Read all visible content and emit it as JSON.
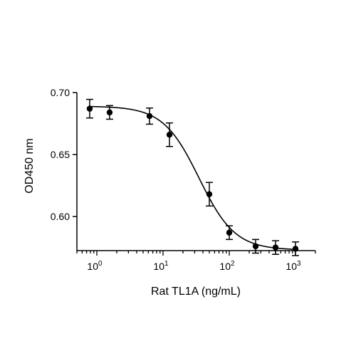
{
  "chart_data": {
    "type": "scatter",
    "title": "",
    "xlabel": "Rat TL1A (ng/mL)",
    "ylabel": "OD450 nm",
    "x_scale": "log",
    "xlim": [
      0.5,
      2000
    ],
    "ylim": [
      0.5725,
      0.7
    ],
    "x_ticks": [
      {
        "value": 1,
        "base": "10",
        "exp": "0"
      },
      {
        "value": 10,
        "base": "10",
        "exp": "1"
      },
      {
        "value": 100,
        "base": "10",
        "exp": "2"
      },
      {
        "value": 1000,
        "base": "10",
        "exp": "3"
      }
    ],
    "y_ticks": [
      {
        "value": 0.6,
        "label": "0.60"
      },
      {
        "value": 0.65,
        "label": "0.65"
      },
      {
        "value": 0.7,
        "label": "0.70"
      }
    ],
    "grid": false,
    "legend": "none",
    "series": [
      {
        "x": [
          0.78,
          1.56,
          6.25,
          12.5,
          50,
          100,
          250,
          500,
          1000
        ],
        "y": [
          0.687,
          0.684,
          0.681,
          0.666,
          0.618,
          0.587,
          0.576,
          0.575,
          0.574
        ],
        "error": [
          0.0075,
          0.0055,
          0.0065,
          0.0095,
          0.0095,
          0.0055,
          0.0055,
          0.0055,
          0.0055
        ],
        "marker": "circle",
        "color": "#000000"
      }
    ],
    "fit_curve": {
      "model": "4PL",
      "top": 0.689,
      "bottom": 0.573,
      "ec50": 35,
      "hill": 1.6,
      "color": "#000000"
    }
  }
}
